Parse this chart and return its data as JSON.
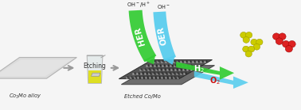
{
  "bg_color": "#f5f5f5",
  "alloy_label": "Co$_3$Mo alloy",
  "etching_label": "Etching",
  "etched_label": "Etched Co/Mo",
  "her_label": "HER",
  "oer_label": "OER",
  "h2_label": "H$_2$",
  "o2_label": "O$_2$",
  "oh_h_label": "OH$^-$/H$^+$",
  "oh_label": "OH$^-$",
  "her_color": "#33cc33",
  "oer_color": "#55ccee",
  "h2_color": "#33cc33",
  "o2_color": "#55ccee",
  "h2_molecule_color": "#cccc00",
  "o2_molecule_color": "#dd2222",
  "plate_light": "#d8d8d8",
  "plate_dark": "#666666",
  "plate_edge": "#888888"
}
